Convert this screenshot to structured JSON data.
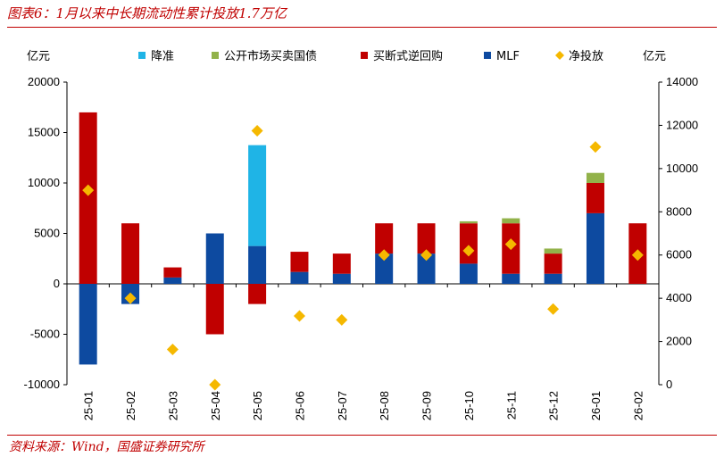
{
  "header": {
    "title": "图表6：1月以来中长期流动性累计投放1.7万亿"
  },
  "footer": {
    "source": "资料来源：Wind，国盛证券研究所"
  },
  "colors": {
    "rrr_cut": "#1fb4e6",
    "outright_bond": "#92b24a",
    "outright_reverse_repo": "#c00000",
    "mlf": "#0d4aa0",
    "net_injection": "#f5b800",
    "rule": "#c00000"
  },
  "chart_data": {
    "type": "bar",
    "title": "1月以来中长期流动性累计投放1.7万亿",
    "left_unit": "亿元",
    "right_unit": "亿元",
    "categories": [
      "25-01",
      "25-02",
      "25-03",
      "25-04",
      "25-05",
      "25-06",
      "25-07",
      "25-08",
      "25-09",
      "25-10",
      "25-11",
      "25-12",
      "26-01",
      "26-02"
    ],
    "left_axis": {
      "min": -10000,
      "max": 20000,
      "ticks": [
        -10000,
        -5000,
        0,
        5000,
        10000,
        15000,
        20000
      ],
      "tick_labels": [
        "-10000",
        "-5000",
        "0",
        "5000",
        "10000",
        "15000",
        "20000"
      ]
    },
    "right_axis": {
      "min": 0,
      "max": 14000,
      "ticks": [
        0,
        2000,
        4000,
        6000,
        8000,
        10000,
        12000,
        14000
      ],
      "tick_labels": [
        "0",
        "2000",
        "4000",
        "6000",
        "8000",
        "10000",
        "12000",
        "14000"
      ]
    },
    "legend": [
      "降准",
      "公开市场买卖国债",
      "买断式逆回购",
      "MLF",
      "净投放"
    ],
    "series": [
      {
        "name": "降准",
        "type": "bar",
        "axis": "left",
        "values": [
          0,
          0,
          0,
          0,
          10000,
          0,
          0,
          0,
          0,
          0,
          0,
          0,
          0,
          0
        ]
      },
      {
        "name": "公开市场买卖国债",
        "type": "bar",
        "axis": "left",
        "values": [
          0,
          0,
          0,
          0,
          0,
          0,
          0,
          0,
          0,
          200,
          500,
          500,
          1000,
          0
        ]
      },
      {
        "name": "买断式逆回购",
        "type": "bar",
        "axis": "left",
        "values": [
          17000,
          6000,
          1000,
          -5000,
          -2000,
          2000,
          2000,
          3000,
          3000,
          4000,
          5000,
          2000,
          3000,
          6000
        ]
      },
      {
        "name": "MLF",
        "type": "bar",
        "axis": "left",
        "values": [
          -8000,
          -2000,
          630,
          5000,
          3750,
          1180,
          1000,
          3000,
          3000,
          2000,
          1000,
          1000,
          7000,
          0
        ]
      },
      {
        "name": "净投放",
        "type": "scatter",
        "axis": "right",
        "values": [
          9000,
          4000,
          1630,
          0,
          11750,
          3180,
          3000,
          6000,
          6000,
          6200,
          6500,
          3500,
          11000,
          6000
        ]
      }
    ]
  }
}
